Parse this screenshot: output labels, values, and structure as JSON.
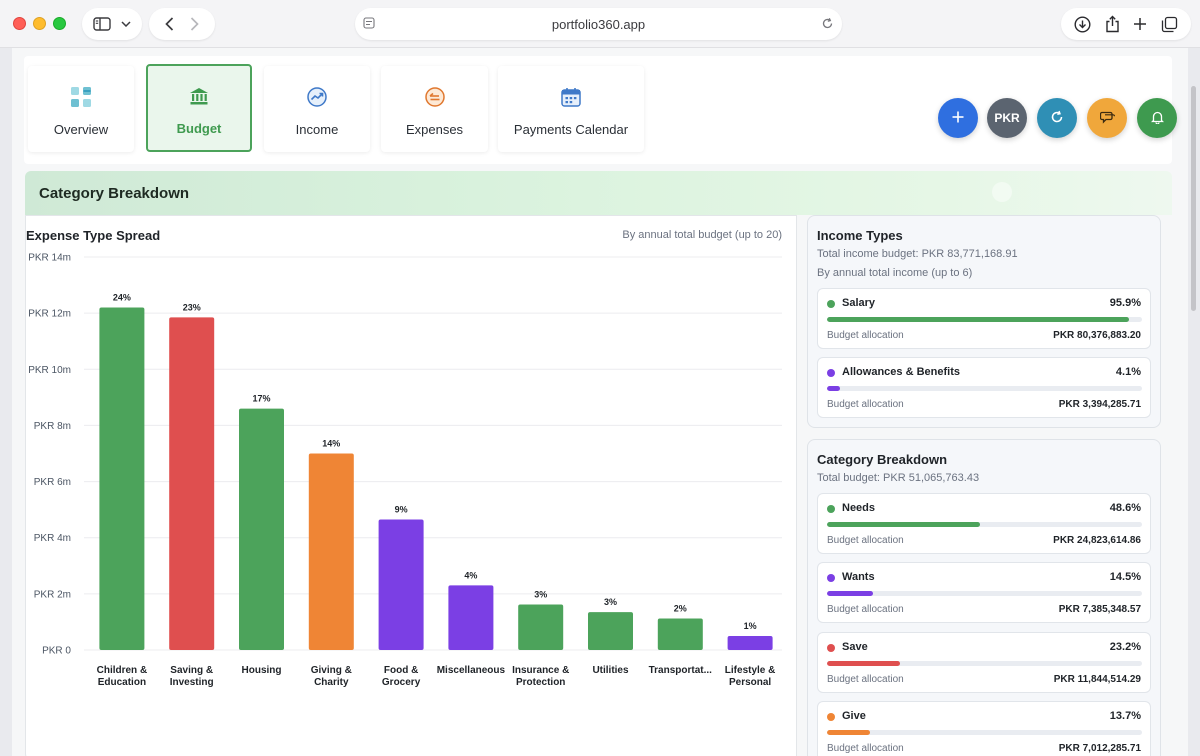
{
  "browser": {
    "url": "portfolio360.app"
  },
  "tabs": [
    {
      "label": "Overview",
      "icon": "dashboard-icon",
      "active": false
    },
    {
      "label": "Budget",
      "icon": "bank-icon",
      "active": true
    },
    {
      "label": "Income",
      "icon": "trend-icon",
      "active": false
    },
    {
      "label": "Expenses",
      "icon": "expense-icon",
      "active": false
    },
    {
      "label": "Payments Calendar",
      "icon": "calendar-icon",
      "active": false
    }
  ],
  "actions": {
    "currency_label": "PKR"
  },
  "section": {
    "title": "Category Breakdown"
  },
  "chart_panel": {
    "title": "Expense Type Spread",
    "subtitle": "By annual total budget (up to 20)"
  },
  "chart_data": {
    "type": "bar",
    "title": "Expense Type Spread",
    "subtitle": "By annual total budget (up to 20)",
    "ylim": [
      0,
      14000000
    ],
    "yticks": [
      {
        "value": 0,
        "label": "PKR 0"
      },
      {
        "value": 2000000,
        "label": "PKR 2m"
      },
      {
        "value": 4000000,
        "label": "PKR 4m"
      },
      {
        "value": 6000000,
        "label": "PKR 6m"
      },
      {
        "value": 8000000,
        "label": "PKR 8m"
      },
      {
        "value": 10000000,
        "label": "PKR 10m"
      },
      {
        "value": 12000000,
        "label": "PKR 12m"
      },
      {
        "value": 14000000,
        "label": "PKR 14m"
      }
    ],
    "bars": [
      {
        "label": [
          "Children &",
          "Education"
        ],
        "value": 12200000,
        "pct": "24%",
        "color": "#4ca35b"
      },
      {
        "label": [
          "Saving &",
          "Investing"
        ],
        "value": 11850000,
        "pct": "23%",
        "color": "#df4f4f"
      },
      {
        "label": [
          "Housing"
        ],
        "value": 8600000,
        "pct": "17%",
        "color": "#4ca35b"
      },
      {
        "label": [
          "Giving &",
          "Charity"
        ],
        "value": 7000000,
        "pct": "14%",
        "color": "#ef8535"
      },
      {
        "label": [
          "Food &",
          "Grocery"
        ],
        "value": 4650000,
        "pct": "9%",
        "color": "#7b3fe4"
      },
      {
        "label": [
          "Miscellaneous"
        ],
        "value": 2300000,
        "pct": "4%",
        "color": "#7b3fe4"
      },
      {
        "label": [
          "Insurance &",
          "Protection"
        ],
        "value": 1620000,
        "pct": "3%",
        "color": "#4ca35b"
      },
      {
        "label": [
          "Utilities"
        ],
        "value": 1350000,
        "pct": "3%",
        "color": "#4ca35b"
      },
      {
        "label": [
          "Transportat..."
        ],
        "value": 1120000,
        "pct": "2%",
        "color": "#4ca35b"
      },
      {
        "label": [
          "Lifestyle &",
          "Personal"
        ],
        "value": 500000,
        "pct": "1%",
        "color": "#7b3fe4"
      }
    ]
  },
  "income_types": {
    "title": "Income Types",
    "total": "Total income budget: PKR 83,771,168.91",
    "note": "By annual total income (up to 6)",
    "items": [
      {
        "name": "Salary",
        "pct": "95.9%",
        "fill": 0.959,
        "color": "#4ca35b",
        "label": "Budget allocation",
        "amount": "PKR 80,376,883.20"
      },
      {
        "name": "Allowances & Benefits",
        "pct": "4.1%",
        "fill": 0.041,
        "color": "#7b3fe4",
        "label": "Budget allocation",
        "amount": "PKR 3,394,285.71"
      }
    ]
  },
  "category_breakdown": {
    "title": "Category Breakdown",
    "total": "Total budget: PKR 51,065,763.43",
    "items": [
      {
        "name": "Needs",
        "pct": "48.6%",
        "fill": 0.486,
        "color": "#4ca35b",
        "label": "Budget allocation",
        "amount": "PKR 24,823,614.86"
      },
      {
        "name": "Wants",
        "pct": "14.5%",
        "fill": 0.145,
        "color": "#7b3fe4",
        "label": "Budget allocation",
        "amount": "PKR 7,385,348.57"
      },
      {
        "name": "Save",
        "pct": "23.2%",
        "fill": 0.232,
        "color": "#df4f4f",
        "label": "Budget allocation",
        "amount": "PKR 11,844,514.29"
      },
      {
        "name": "Give",
        "pct": "13.7%",
        "fill": 0.137,
        "color": "#ef8535",
        "label": "Budget allocation",
        "amount": "PKR 7,012,285.71"
      }
    ]
  }
}
